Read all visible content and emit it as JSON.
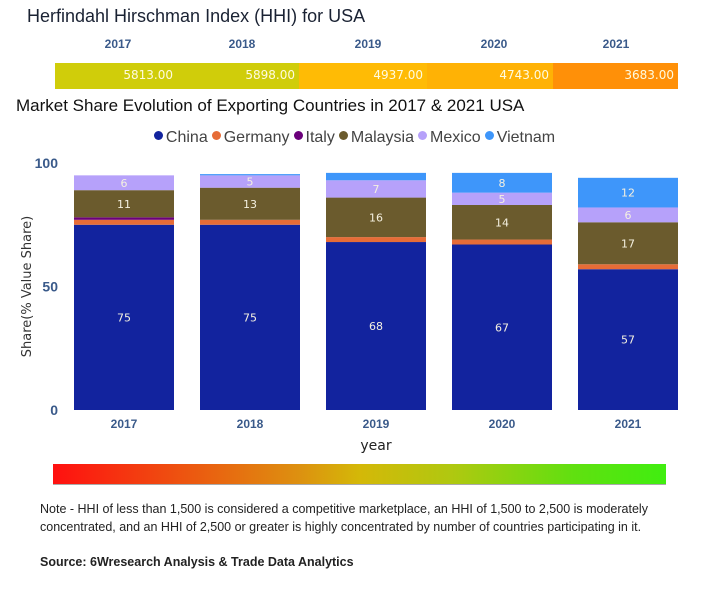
{
  "hhi": {
    "title": "Herfindahl Hirschman Index (HHI) for USA",
    "years": [
      "2017",
      "2018",
      "2019",
      "2020",
      "2021"
    ],
    "values": [
      "5813.00",
      "5898.00",
      "4937.00",
      "4743.00",
      "3683.00"
    ],
    "colors": [
      "#d0cd0a",
      "#d0cd0a",
      "#ffbb05",
      "#ffb205",
      "#ff9008"
    ]
  },
  "chart_data": {
    "type": "bar",
    "stacked": true,
    "title": "Market Share Evolution of Exporting Countries in 2017 & 2021 USA",
    "xlabel": "year",
    "ylabel": "Share(% Value Share)",
    "ylim": [
      0,
      100
    ],
    "yticks": [
      "0",
      "50",
      "100"
    ],
    "categories": [
      "2017",
      "2018",
      "2019",
      "2020",
      "2021"
    ],
    "legend_position": "top-center",
    "series": [
      {
        "name": "China",
        "color": "#12239e",
        "values": [
          75,
          75,
          68,
          67,
          57
        ],
        "labels": [
          "75",
          "75",
          "68",
          "67",
          "57"
        ]
      },
      {
        "name": "Germany",
        "color": "#e66c37",
        "values": [
          2,
          2,
          2,
          2,
          2
        ],
        "labels": [
          "",
          "",
          "",
          "",
          ""
        ]
      },
      {
        "name": "Italy",
        "color": "#6b007b",
        "values": [
          1,
          0,
          0,
          0,
          0
        ],
        "labels": [
          "",
          "",
          "",
          "",
          ""
        ]
      },
      {
        "name": "Malaysia",
        "color": "#6b5b2d",
        "values": [
          11,
          13,
          16,
          14,
          17
        ],
        "labels": [
          "11",
          "13",
          "16",
          "14",
          "17"
        ]
      },
      {
        "name": "Mexico",
        "color": "#b6a1fa",
        "values": [
          6,
          5,
          7,
          5,
          6
        ],
        "labels": [
          "6",
          "5",
          "7",
          "5",
          "6"
        ]
      },
      {
        "name": "Vietnam",
        "color": "#3e96fa",
        "values": [
          0,
          0.5,
          3,
          8,
          12
        ],
        "labels": [
          "",
          "",
          "",
          "8",
          "12"
        ]
      }
    ]
  },
  "note": "Note - HHI of less than 1,500 is considered a competitive marketplace, an HHI of 1,500 to 2,500 is moderately concentrated, and an HHI of 2,500 or greater is highly concentrated by number of countries participating in it.",
  "source": "Source: 6Wresearch Analysis & Trade Data Analytics"
}
